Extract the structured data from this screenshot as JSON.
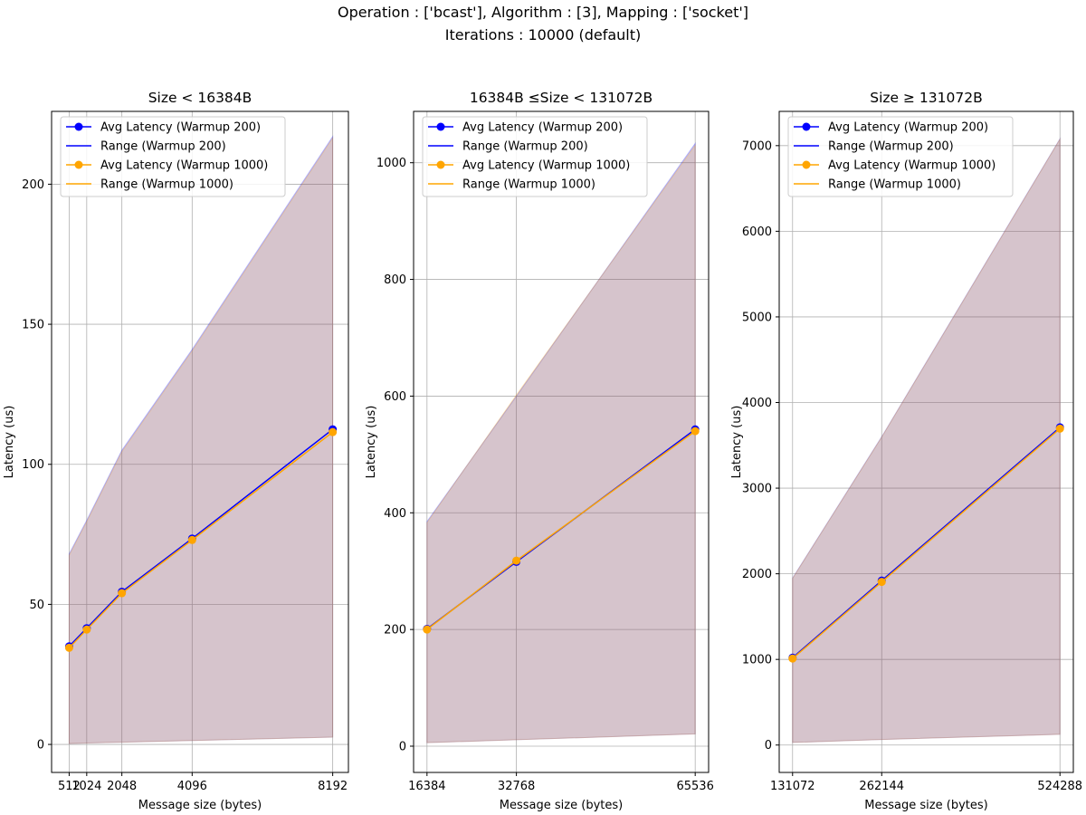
{
  "figure": {
    "suptitle_line1": "Operation :  ['bcast'], Algorithm :  [3], Mapping :  ['socket']",
    "suptitle_line2": "Iterations :  10000 (default)"
  },
  "chart_data": [
    {
      "type": "line",
      "title": "Size <  16384B",
      "xlabel": "Message size (bytes)",
      "ylabel": "Latency (us)",
      "x": [
        512,
        1024,
        2048,
        4096,
        8192
      ],
      "x_tick_labels": [
        "512",
        "1024",
        "2048",
        "4096",
        "8192"
      ],
      "xlim": [
        0,
        8650
      ],
      "ylim": [
        -10,
        226
      ],
      "y_ticks": [
        0,
        50,
        100,
        150,
        200
      ],
      "grid": true,
      "legend_position": "top-left",
      "series": [
        {
          "name": "Avg Latency (Warmup 200)",
          "kind": "line-marker",
          "color": "#0000ff",
          "values": [
            35,
            41.5,
            54.5,
            73.5,
            112.5
          ]
        },
        {
          "name": "Range (Warmup 200)",
          "kind": "band",
          "color": "#0000ff",
          "lower": [
            0.3,
            0.5,
            0.8,
            1.4,
            2.6
          ],
          "upper": [
            68,
            80,
            105,
            141,
            217
          ]
        },
        {
          "name": "Avg Latency (Warmup 1000)",
          "kind": "line-marker",
          "color": "#ffa500",
          "values": [
            34.5,
            41,
            54,
            73,
            111.5
          ]
        },
        {
          "name": "Range (Warmup 1000)",
          "kind": "band",
          "color": "#ffa500",
          "lower": [
            0.3,
            0.5,
            0.8,
            1.4,
            2.6
          ],
          "upper": [
            67.5,
            79.5,
            104.5,
            140.5,
            216.5
          ]
        }
      ]
    },
    {
      "type": "line",
      "title": "16384B  ≤Size <  131072B",
      "xlabel": "Message size (bytes)",
      "ylabel": "Latency (us)",
      "x": [
        16384,
        32768,
        65536
      ],
      "x_tick_labels": [
        "16384",
        "32768",
        "65536"
      ],
      "xlim": [
        13926,
        67994
      ],
      "ylim": [
        -45,
        1088
      ],
      "y_ticks": [
        0,
        200,
        400,
        600,
        800,
        1000
      ],
      "grid": true,
      "legend_position": "top-left",
      "series": [
        {
          "name": "Avg Latency (Warmup 200)",
          "kind": "line-marker",
          "color": "#0000ff",
          "values": [
            201,
            316,
            543
          ]
        },
        {
          "name": "Range (Warmup 200)",
          "kind": "band",
          "color": "#0000ff",
          "lower": [
            6,
            11,
            21
          ],
          "upper": [
            385,
            600,
            1033
          ]
        },
        {
          "name": "Avg Latency (Warmup 1000)",
          "kind": "line-marker",
          "color": "#ffa500",
          "values": [
            200,
            318,
            540
          ]
        },
        {
          "name": "Range (Warmup 1000)",
          "kind": "band",
          "color": "#ffa500",
          "lower": [
            6,
            11,
            21
          ],
          "upper": [
            383,
            602,
            1030
          ]
        }
      ]
    },
    {
      "type": "line",
      "title": "Size ≥  131072B",
      "xlabel": "Message size (bytes)",
      "ylabel": "Latency (us)",
      "x": [
        131072,
        262144,
        524288
      ],
      "x_tick_labels": [
        "131072",
        "262144",
        "524288"
      ],
      "xlim": [
        111411,
        543949
      ],
      "ylim": [
        -320,
        7400
      ],
      "y_ticks": [
        0,
        1000,
        2000,
        3000,
        4000,
        5000,
        6000,
        7000
      ],
      "grid": true,
      "legend_position": "top-left",
      "series": [
        {
          "name": "Avg Latency (Warmup 200)",
          "kind": "line-marker",
          "color": "#0000ff",
          "values": [
            1020,
            1920,
            3710
          ]
        },
        {
          "name": "Range (Warmup 200)",
          "kind": "band",
          "color": "#0000ff",
          "lower": [
            30,
            65,
            125
          ],
          "upper": [
            1950,
            3600,
            7080
          ]
        },
        {
          "name": "Avg Latency (Warmup 1000)",
          "kind": "line-marker",
          "color": "#ffa500",
          "values": [
            1010,
            1905,
            3695
          ]
        },
        {
          "name": "Range (Warmup 1000)",
          "kind": "band",
          "color": "#ffa500",
          "lower": [
            30,
            65,
            125
          ],
          "upper": [
            1945,
            3595,
            7075
          ]
        }
      ]
    }
  ]
}
